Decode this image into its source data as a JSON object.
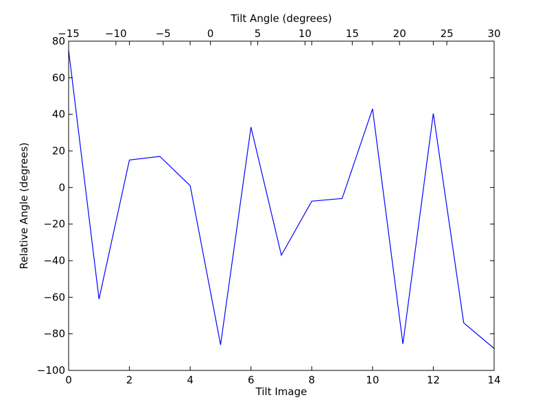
{
  "chart_data": {
    "type": "line",
    "xlabel": "Tilt Image",
    "ylabel": "Relative Angle (degrees)",
    "top_xlabel": "Tilt Angle (degrees)",
    "xlim": [
      0,
      14
    ],
    "ylim": [
      -100,
      80
    ],
    "top_xlim": [
      -15,
      30
    ],
    "x_ticks": [
      "0",
      "2",
      "4",
      "6",
      "8",
      "10",
      "12",
      "14"
    ],
    "x_tick_values": [
      0,
      2,
      4,
      6,
      8,
      10,
      12,
      14
    ],
    "y_ticks": [
      "−100",
      "−80",
      "−60",
      "−40",
      "−20",
      "0",
      "20",
      "40",
      "60",
      "80"
    ],
    "y_tick_values": [
      -100,
      -80,
      -60,
      -40,
      -20,
      0,
      20,
      40,
      60,
      80
    ],
    "top_x_ticks": [
      "−15",
      "−10",
      "−5",
      "0",
      "5",
      "10",
      "15",
      "20",
      "25",
      "30"
    ],
    "top_x_tick_values": [
      -15,
      -10,
      -5,
      0,
      5,
      10,
      15,
      20,
      25,
      30
    ],
    "grid": false,
    "series": [
      {
        "color": "#0000ff",
        "x": [
          0,
          1,
          2,
          3,
          4,
          5,
          6,
          7,
          8,
          9,
          10,
          11,
          12,
          13,
          14
        ],
        "y": [
          75,
          -61,
          15,
          17,
          1,
          -86,
          33,
          -37,
          -7.5,
          -6,
          43,
          -85.5,
          40.5,
          -74,
          -88
        ]
      }
    ]
  }
}
